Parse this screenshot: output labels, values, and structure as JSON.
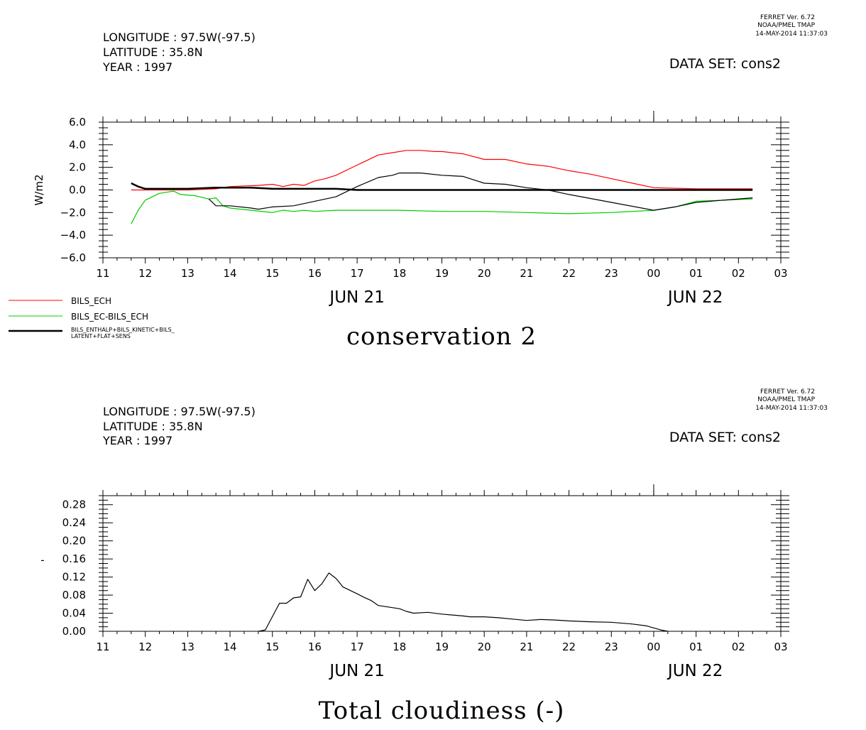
{
  "panel1": {
    "header": {
      "longitude": "LONGITUDE : 97.5W(-97.5)",
      "latitude": "LATITUDE : 35.8N",
      "year": "YEAR : 1997",
      "dataset": "DATA SET: cons2",
      "stamp_line1": "FERRET Ver. 6.72",
      "stamp_line2": "NOAA/PMEL TMAP",
      "stamp_line3": "14-MAY-2014 11:37:03"
    },
    "title": "conservation 2",
    "legend": [
      {
        "label": "BILS_ECH",
        "color": "#ff0000"
      },
      {
        "label": "BILS_EC-BILS_ECH",
        "color": "#00cc00"
      },
      {
        "label_line1": "BILS_ENTHALP+BILS_KINETIC+BILS_",
        "label_line2": "LATENT+FLAT+SENS",
        "color": "#000000"
      }
    ]
  },
  "panel2": {
    "header": {
      "longitude": "LONGITUDE : 97.5W(-97.5)",
      "latitude": "LATITUDE : 35.8N",
      "year": "YEAR : 1997",
      "dataset": "DATA SET: cons2",
      "stamp_line1": "FERRET Ver. 6.72",
      "stamp_line2": "NOAA/PMEL TMAP",
      "stamp_line3": "14-MAY-2014 11:37:03"
    },
    "title": "Total cloudiness (-)"
  },
  "chart_data": [
    {
      "type": "line",
      "title": "conservation 2",
      "xlabel": "",
      "ylabel": "W/m2",
      "xlim": [
        "JUN 21 11:00",
        "JUN 22 03:00"
      ],
      "ylim": [
        -6.0,
        6.0
      ],
      "x_ticks": [
        "11",
        "12",
        "13",
        "14",
        "15",
        "16",
        "17",
        "18",
        "19",
        "20",
        "21",
        "22",
        "23",
        "00",
        "01",
        "02",
        "03"
      ],
      "x_date_labels": [
        "JUN 21",
        "JUN 22"
      ],
      "y_ticks": [
        "6.0",
        "4.0",
        "2.0",
        "0.0",
        "-2.0",
        "-4.0",
        "-6.0"
      ],
      "grid": false,
      "legend_position": "bottom-left",
      "series": [
        {
          "name": "BILS_ECH",
          "color": "#ff0000",
          "x": [
            "JUN 21 11:40",
            "JUN 21 12:00",
            "JUN 21 13:00",
            "JUN 21 13:40",
            "JUN 21 14:00",
            "JUN 21 14:40",
            "JUN 21 15:00",
            "JUN 21 15:15",
            "JUN 21 15:30",
            "JUN 21 15:45",
            "JUN 21 16:00",
            "JUN 21 16:15",
            "JUN 21 16:30",
            "JUN 21 17:00",
            "JUN 21 17:30",
            "JUN 21 17:50",
            "JUN 21 18:10",
            "JUN 21 18:30",
            "JUN 21 18:50",
            "JUN 21 19:00",
            "JUN 21 19:30",
            "JUN 21 20:00",
            "JUN 21 20:30",
            "JUN 21 21:00",
            "JUN 21 21:30",
            "JUN 21 22:00",
            "JUN 21 22:30",
            "JUN 21 23:00",
            "JUN 21 23:30",
            "JUN 22 00:00",
            "JUN 22 01:00",
            "JUN 22 02:20"
          ],
          "y": [
            0.0,
            0.0,
            0.0,
            0.1,
            0.3,
            0.4,
            0.5,
            0.3,
            0.5,
            0.4,
            0.8,
            1.0,
            1.3,
            2.2,
            3.1,
            3.3,
            3.5,
            3.5,
            3.4,
            3.4,
            3.2,
            2.7,
            2.7,
            2.3,
            2.1,
            1.7,
            1.4,
            1.0,
            0.6,
            0.2,
            0.1,
            0.1
          ]
        },
        {
          "name": "BILS_EC-BILS_ECH",
          "color": "#00cc00",
          "x": [
            "JUN 21 11:40",
            "JUN 21 11:50",
            "JUN 21 12:00",
            "JUN 21 12:20",
            "JUN 21 12:40",
            "JUN 21 12:50",
            "JUN 21 13:10",
            "JUN 21 13:30",
            "JUN 21 13:40",
            "JUN 21 13:50",
            "JUN 21 14:00",
            "JUN 21 14:30",
            "JUN 21 15:00",
            "JUN 21 15:15",
            "JUN 21 15:30",
            "JUN 21 15:45",
            "JUN 21 16:00",
            "JUN 21 16:30",
            "JUN 21 17:00",
            "JUN 21 18:00",
            "JUN 21 19:00",
            "JUN 21 20:00",
            "JUN 21 21:00",
            "JUN 21 22:00",
            "JUN 21 23:00",
            "JUN 22 00:00",
            "JUN 22 00:30",
            "JUN 22 01:00",
            "JUN 22 02:20"
          ],
          "y": [
            -3.0,
            -1.8,
            -0.9,
            -0.3,
            -0.1,
            -0.4,
            -0.5,
            -0.8,
            -0.7,
            -1.4,
            -1.6,
            -1.8,
            -2.0,
            -1.8,
            -1.9,
            -1.8,
            -1.9,
            -1.8,
            -1.8,
            -1.8,
            -1.9,
            -1.9,
            -2.0,
            -2.1,
            -2.0,
            -1.8,
            -1.5,
            -1.0,
            -0.8
          ]
        },
        {
          "name": "BILS_ENTHALP+BILS_KINETIC+BILS_LATENT+FLAT+SENS",
          "color": "#000000",
          "x": [
            "JUN 21 11:40",
            "JUN 21 11:50",
            "JUN 21 12:00",
            "JUN 21 13:00",
            "JUN 21 13:40",
            "JUN 21 14:00",
            "JUN 21 14:30",
            "JUN 21 15:00",
            "JUN 21 15:30",
            "JUN 21 16:00",
            "JUN 21 16:30",
            "JUN 21 17:00",
            "JUN 21 17:30",
            "JUN 21 18:00",
            "JUN 21 19:00",
            "JUN 21 20:00",
            "JUN 21 21:00",
            "JUN 21 22:00",
            "JUN 21 23:00",
            "JUN 22 00:00",
            "JUN 22 01:00",
            "JUN 22 02:20"
          ],
          "y": [
            0.6,
            0.3,
            0.1,
            0.1,
            0.2,
            0.2,
            0.2,
            0.1,
            0.1,
            0.1,
            0.1,
            0.0,
            0.0,
            0.0,
            0.0,
            0.0,
            0.0,
            0.0,
            0.0,
            0.0,
            0.0,
            0.0
          ]
        },
        {
          "name": "",
          "color": "#000000",
          "x": [
            "JUN 21 13:30",
            "JUN 21 13:40",
            "JUN 21 14:00",
            "JUN 21 14:30",
            "JUN 21 14:40",
            "JUN 21 15:00",
            "JUN 21 15:30",
            "JUN 21 16:00",
            "JUN 21 16:30",
            "JUN 21 17:00",
            "JUN 21 17:30",
            "JUN 21 17:50",
            "JUN 21 18:00",
            "JUN 21 18:30",
            "JUN 21 19:00",
            "JUN 21 19:30",
            "JUN 21 20:00",
            "JUN 21 20:30",
            "JUN 21 21:00",
            "JUN 21 21:30",
            "JUN 21 22:00",
            "JUN 21 23:00",
            "JUN 22 00:00",
            "JUN 22 00:30",
            "JUN 22 01:00",
            "JUN 22 02:20"
          ],
          "y": [
            -0.8,
            -1.4,
            -1.4,
            -1.6,
            -1.7,
            -1.5,
            -1.4,
            -1.0,
            -0.6,
            0.3,
            1.1,
            1.3,
            1.5,
            1.5,
            1.3,
            1.2,
            0.6,
            0.5,
            0.2,
            0.0,
            -0.4,
            -1.1,
            -1.8,
            -1.5,
            -1.1,
            -0.7
          ]
        }
      ]
    },
    {
      "type": "line",
      "title": "Total cloudiness (-)",
      "xlabel": "",
      "ylabel": "-",
      "xlim": [
        "JUN 21 11:00",
        "JUN 22 03:00"
      ],
      "ylim": [
        0.0,
        0.3
      ],
      "x_ticks": [
        "11",
        "12",
        "13",
        "14",
        "15",
        "16",
        "17",
        "18",
        "19",
        "20",
        "21",
        "22",
        "23",
        "00",
        "01",
        "02",
        "03"
      ],
      "x_date_labels": [
        "JUN 21",
        "JUN 22"
      ],
      "y_ticks": [
        "0.28",
        "0.24",
        "0.20",
        "0.16",
        "0.12",
        "0.08",
        "0.04",
        "0.00"
      ],
      "grid": false,
      "series": [
        {
          "name": "Total cloudiness (-)",
          "color": "#000000",
          "x": [
            "JUN 21 14:40",
            "JUN 21 14:50",
            "JUN 21 15:10",
            "JUN 21 15:20",
            "JUN 21 15:30",
            "JUN 21 15:40",
            "JUN 21 15:50",
            "JUN 21 16:00",
            "JUN 21 16:10",
            "JUN 21 16:20",
            "JUN 21 16:30",
            "JUN 21 16:40",
            "JUN 21 17:00",
            "JUN 21 17:10",
            "JUN 21 17:20",
            "JUN 21 17:30",
            "JUN 21 18:00",
            "JUN 21 18:10",
            "JUN 21 18:20",
            "JUN 21 18:40",
            "JUN 21 19:00",
            "JUN 21 19:30",
            "JUN 21 19:40",
            "JUN 21 20:00",
            "JUN 21 20:20",
            "JUN 21 20:40",
            "JUN 21 21:00",
            "JUN 21 21:20",
            "JUN 21 21:40",
            "JUN 21 22:00",
            "JUN 21 22:30",
            "JUN 21 23:00",
            "JUN 21 23:30",
            "JUN 21 23:50",
            "JUN 22 00:10",
            "JUN 22 00:20"
          ],
          "y": [
            0.0,
            0.003,
            0.062,
            0.062,
            0.074,
            0.076,
            0.115,
            0.09,
            0.105,
            0.129,
            0.117,
            0.098,
            0.083,
            0.075,
            0.068,
            0.057,
            0.05,
            0.044,
            0.04,
            0.042,
            0.038,
            0.034,
            0.032,
            0.032,
            0.03,
            0.027,
            0.024,
            0.026,
            0.025,
            0.023,
            0.021,
            0.02,
            0.016,
            0.012,
            0.003,
            0.0
          ]
        }
      ]
    }
  ]
}
